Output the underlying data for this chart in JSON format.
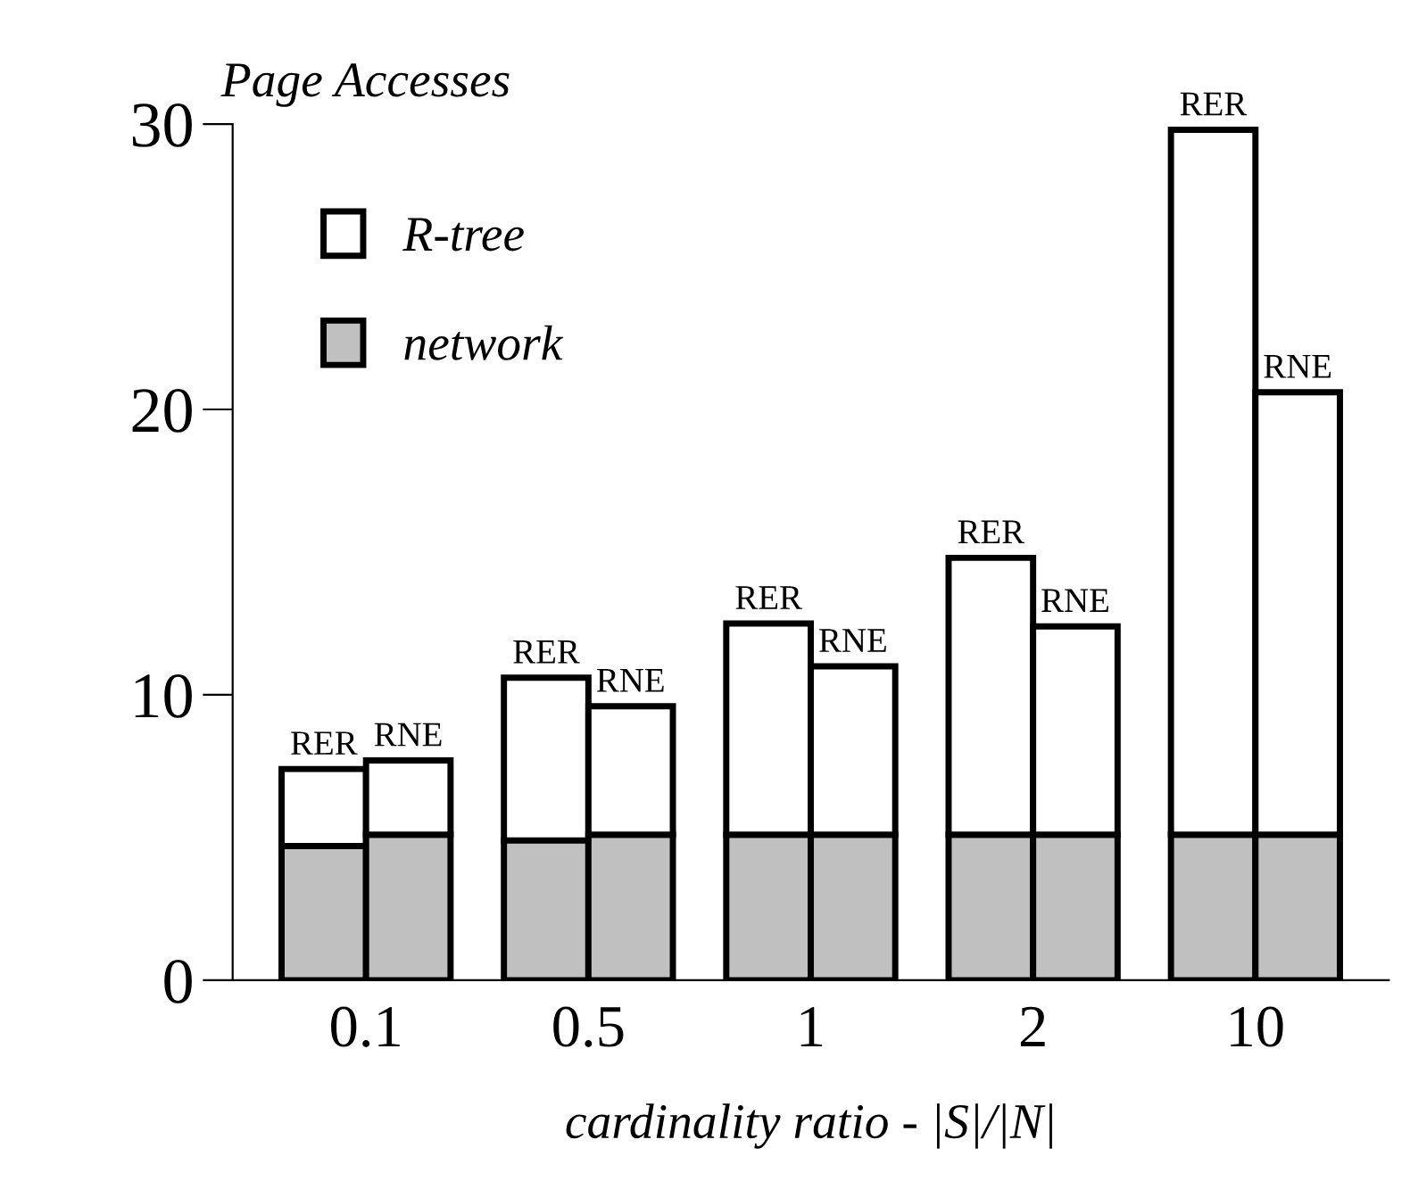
{
  "chart_data": [
    {
      "type": "bar",
      "stacked": true,
      "ylabel": "Page Accesses",
      "xlabel": "cardinality ratio - |S|/|N|",
      "categories": [
        "0.1",
        "0.5",
        "1",
        "2",
        "10"
      ],
      "series": [
        {
          "name": "network",
          "color": "#c0c0c0",
          "values": [
            4.7,
            4.9,
            5.1,
            5.1,
            5.1
          ]
        },
        {
          "name": "R-tree",
          "color": "#ffffff",
          "values": [
            2.7,
            5.7,
            7.4,
            9.7,
            24.7
          ]
        }
      ],
      "annotations": [
        {
          "text": "RER",
          "x": "0.1",
          "y": 7.4
        },
        {
          "text": "RER",
          "x": "0.5",
          "y": 10.6
        },
        {
          "text": "RER",
          "x": "1",
          "y": 12.5
        },
        {
          "text": "RER",
          "x": "2",
          "y": 14.8
        },
        {
          "text": "RER",
          "x": "10",
          "y": 29.8
        }
      ],
      "ylim": [
        0,
        30
      ],
      "yticks": [
        0,
        10,
        20,
        30
      ],
      "legend": "top left"
    },
    {
      "type": "bar",
      "stacked": true,
      "categories": [
        "0.1",
        "0.5",
        "1",
        "2",
        "10"
      ],
      "series": [
        {
          "color": "#c0c0c0",
          "values": [
            5.1,
            5.1,
            5.1,
            5.1,
            5.1
          ]
        },
        {
          "color": "#ffffff",
          "values": [
            2.6,
            4.5,
            5.9,
            7.3,
            15.5
          ]
        }
      ],
      "annotations": [
        {
          "text": "RNE",
          "x": "0.1",
          "y": 7.7
        },
        {
          "text": "RNE",
          "x": "0.5",
          "y": 9.6
        },
        {
          "text": "RNE",
          "x": "1",
          "y": 11.0
        },
        {
          "text": "RNE",
          "x": "2",
          "y": 12.4
        },
        {
          "text": "RNE",
          "x": "10",
          "y": 20.6
        }
      ],
      "ylim": [
        0,
        30
      ],
      "yticks": [
        0,
        10,
        20,
        30
      ],
      "tick_labels": false
    }
  ]
}
